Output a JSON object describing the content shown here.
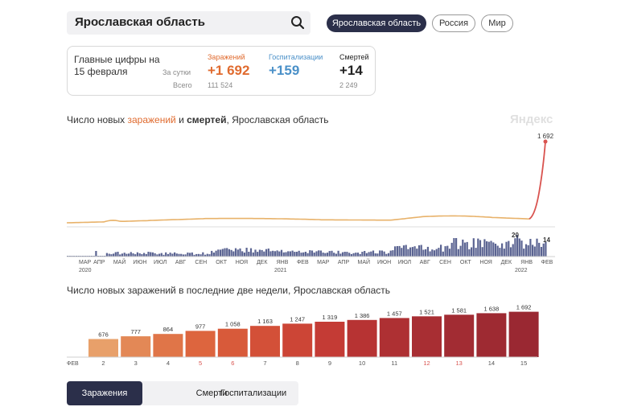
{
  "search": {
    "value": "Ярославская область"
  },
  "regions": [
    {
      "label": "Ярославская область",
      "active": true
    },
    {
      "label": "Россия",
      "active": false
    },
    {
      "label": "Мир",
      "active": false
    }
  ],
  "stats": {
    "title": "Главные цифры на 15 февраля",
    "row_day": "За сутки",
    "row_total": "Всего",
    "infections": {
      "label": "Заражений",
      "day": "+1 692",
      "total": "111 524",
      "color": "#e06b2f"
    },
    "hospital": {
      "label": "Госпитализации",
      "day": "+159",
      "color": "#4a90c8"
    },
    "deaths": {
      "label": "Смертей",
      "day": "+14",
      "total": "2 249",
      "color": "#222222"
    }
  },
  "chart1": {
    "title_prefix": "Число новых ",
    "title_infections": "заражений",
    "title_mid": " и ",
    "title_deaths": "смертей",
    "title_suffix": ", Ярославская область",
    "brand": "Яндекс",
    "peak_label": "1 692",
    "deaths_peak_label": "20",
    "deaths_last_label": "14",
    "months": [
      "МАР",
      "АПР",
      "МАЙ",
      "ИЮН",
      "ИЮЛ",
      "АВГ",
      "СЕН",
      "ОКТ",
      "НОЯ",
      "ДЕК",
      "ЯНВ",
      "ФЕВ",
      "МАР",
      "АПР",
      "МАЙ",
      "ИЮН",
      "ИЮЛ",
      "АВГ",
      "СЕН",
      "ОКТ",
      "НОЯ",
      "ДЕК",
      "ЯНВ",
      "ФЕВ"
    ],
    "year_labels": [
      "2020",
      "2021",
      "2022"
    ],
    "line_color": "#e8b26a",
    "peak_color": "#d9534f",
    "deaths_color": "#5b6492"
  },
  "chart_data": {
    "type": "bar",
    "title": "Число новых заражений в последние две недели, Ярославская область",
    "x_prefix": "ФЕВ",
    "categories": [
      "2",
      "3",
      "4",
      "5",
      "6",
      "7",
      "8",
      "9",
      "10",
      "11",
      "12",
      "13",
      "14",
      "15"
    ],
    "values": [
      676,
      777,
      864,
      977,
      1058,
      1163,
      1247,
      1319,
      1386,
      1457,
      1521,
      1581,
      1638,
      1692
    ],
    "value_labels": [
      "676",
      "777",
      "864",
      "977",
      "1 058",
      "1 163",
      "1 247",
      "1 319",
      "1 386",
      "1 457",
      "1 521",
      "1 581",
      "1 638",
      "1 692"
    ],
    "weekend": [
      false,
      false,
      false,
      true,
      true,
      false,
      false,
      false,
      false,
      false,
      true,
      true,
      false,
      false
    ],
    "colors": [
      "#e8a06a",
      "#e38856",
      "#e07548",
      "#dd653e",
      "#d85a3a",
      "#d35038",
      "#cc4536",
      "#c43b35",
      "#b73333",
      "#ae3033",
      "#a82e33",
      "#a22c33",
      "#9e2a32",
      "#9a2832"
    ],
    "ylim": [
      0,
      1800
    ]
  },
  "tabs": [
    "Заражения",
    "Смерти",
    "Госпитализации"
  ]
}
